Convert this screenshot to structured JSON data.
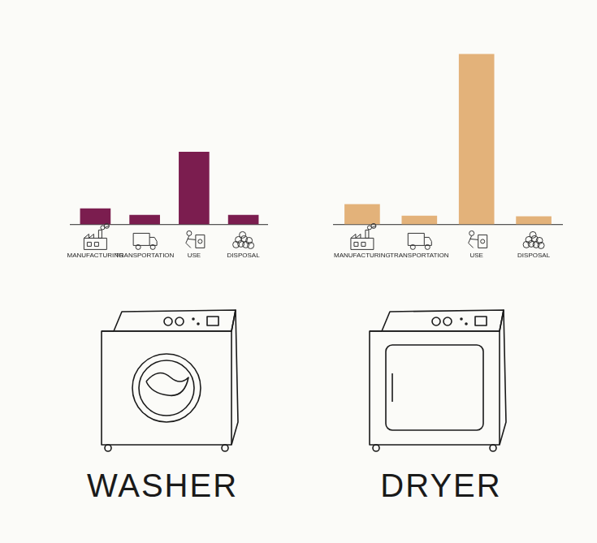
{
  "chart_data": [
    {
      "type": "bar",
      "title": "WASHER",
      "categories": [
        "MANUFACTURING",
        "TRANSPORTATION",
        "USE",
        "DISPOSAL"
      ],
      "values": [
        22,
        13,
        100,
        13
      ],
      "color": "#7b1d4f",
      "ylim": [
        0,
        240
      ],
      "grid": false,
      "tick_labels": "x"
    },
    {
      "type": "bar",
      "title": "DRYER",
      "categories": [
        "MANUFACTURING",
        "TRANSPORTATION",
        "USE",
        "DISPOSAL"
      ],
      "values": [
        28,
        12,
        235,
        11
      ],
      "color": "#e3b27a",
      "ylim": [
        0,
        240
      ],
      "grid": false,
      "tick_labels": "x"
    }
  ]
}
